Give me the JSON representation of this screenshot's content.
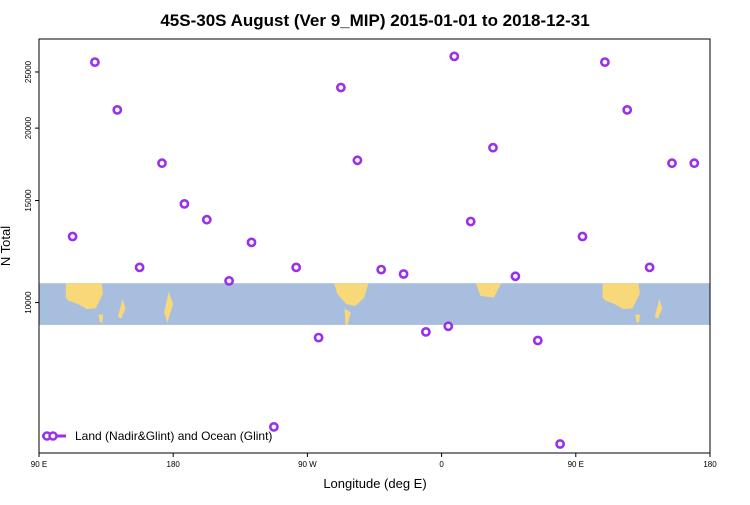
{
  "chart_data": {
    "type": "scatter",
    "title": "45S-30S August (Ver 9_MIP)   2015-01-01 to 2018-12-31",
    "xlabel": "Longitude (deg E)",
    "ylabel": "N Total",
    "x_axis": {
      "range_deg_from_90E": [
        0,
        450
      ],
      "ticks": [
        {
          "at": 0,
          "label": "90 E"
        },
        {
          "at": 90,
          "label": "180"
        },
        {
          "at": 180,
          "label": "90 W"
        },
        {
          "at": 270,
          "label": "0"
        },
        {
          "at": 360,
          "label": "90 E"
        },
        {
          "at": 450,
          "label": "180"
        }
      ]
    },
    "y_axis": {
      "scale": "log",
      "ylim": [
        5500,
        28500
      ],
      "ticks": [
        10000,
        15000,
        20000,
        25000
      ],
      "tick_labels": [
        "10000",
        "15000",
        "20000",
        "25000"
      ]
    },
    "map_band": {
      "y_range": [
        9150,
        10800
      ],
      "ocean_color": "#a8bede",
      "land_color": "#f8d878"
    },
    "series": [
      {
        "name": "Land (Nadir&Glint) and Ocean (Glint)",
        "color": "#9a30e8",
        "marker": "open-circle",
        "x": [
          22.5,
          37.5,
          52.5,
          67.5,
          82.5,
          97.5,
          112.5,
          127.5,
          142.5,
          157.5,
          172.5,
          187.5,
          202.5,
          213.5,
          229.5,
          244.5,
          259.5,
          274.5,
          278.5,
          289.5,
          304.5,
          319.5,
          334.5,
          349.5,
          364.5,
          379.5,
          394.5,
          409.5,
          424.5,
          439.5
        ],
        "y": [
          13000,
          26000,
          21500,
          11500,
          17400,
          14800,
          13900,
          10900,
          12700,
          6100,
          11500,
          8700,
          23500,
          17600,
          11400,
          11200,
          8900,
          9100,
          26600,
          13800,
          18500,
          11100,
          8600,
          5700,
          13000,
          26000,
          21500,
          11500,
          17400,
          17400
        ]
      }
    ],
    "legend": {
      "position": "bottom-left"
    }
  }
}
